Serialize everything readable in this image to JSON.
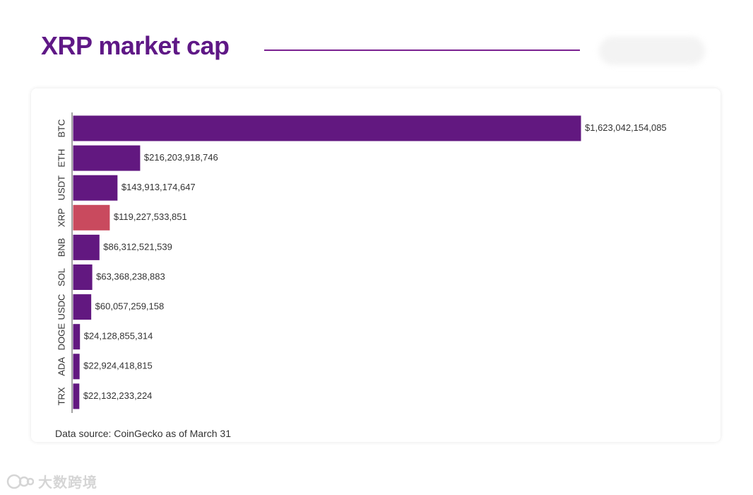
{
  "page": {
    "title": "XRP market cap",
    "source_note": "Data source: CoinGecko as of March 31",
    "watermark": "大数跨境"
  },
  "colors": {
    "title": "#5f1886",
    "bar": "#621880",
    "highlight": "#c94a5e",
    "label_text": "#333333"
  },
  "chart_data": {
    "type": "bar",
    "orientation": "horizontal",
    "title": "XRP market cap",
    "xlabel": "",
    "ylabel": "",
    "categories": [
      "BTC",
      "ETH",
      "USDT",
      "XRP",
      "BNB",
      "SOL",
      "USDC",
      "DOGE",
      "ADA",
      "TRX"
    ],
    "values": [
      1623042154085,
      216203918746,
      143913174647,
      119227533851,
      86312521539,
      63368238883,
      60057259158,
      24128855314,
      22924418815,
      22132233224
    ],
    "labels": [
      "$1,623,042,154,085",
      "$216,203,918,746",
      "$143,913,174,647",
      "$119,227,533,851",
      "$86,312,521,539",
      "$63,368,238,883",
      "$60,057,259,158",
      "$24,128,855,314",
      "$22,924,418,815",
      "$22,132,233,224"
    ],
    "highlight": "XRP",
    "xlim": [
      0,
      1623042154085
    ],
    "grid": false
  }
}
